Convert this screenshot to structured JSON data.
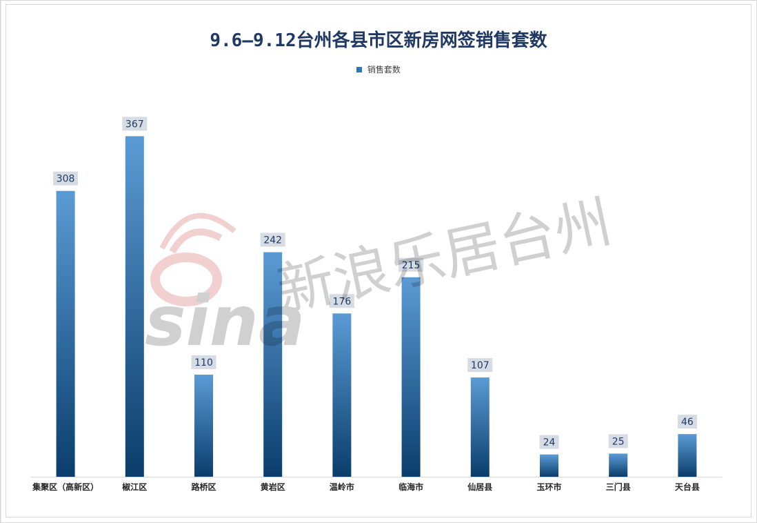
{
  "chart_data": {
    "type": "bar",
    "title": "9.6–9.12台州各县市区新房网签销售套数",
    "legend": {
      "entries": [
        "销售套数"
      ],
      "position": "top"
    },
    "categories": [
      "集聚区（高新区）",
      "椒江区",
      "路桥区",
      "黄岩区",
      "温岭市",
      "临海市",
      "仙居县",
      "玉环市",
      "三门县",
      "天台县"
    ],
    "series": [
      {
        "name": "销售套数",
        "values": [
          308,
          367,
          110,
          242,
          176,
          215,
          107,
          24,
          25,
          46
        ]
      }
    ],
    "ylim": [
      0,
      400
    ],
    "grid": false,
    "data_labels": true
  },
  "colors": {
    "bar_top": "#5b9bd5",
    "bar_bottom": "#0a3d6b",
    "label_bg": "#d6dce4",
    "label_text": "#1f3864",
    "axis": "#d9d9d9",
    "title": "#1f3864"
  },
  "watermark": {
    "logo": "sina",
    "text": "新浪乐居台州"
  }
}
